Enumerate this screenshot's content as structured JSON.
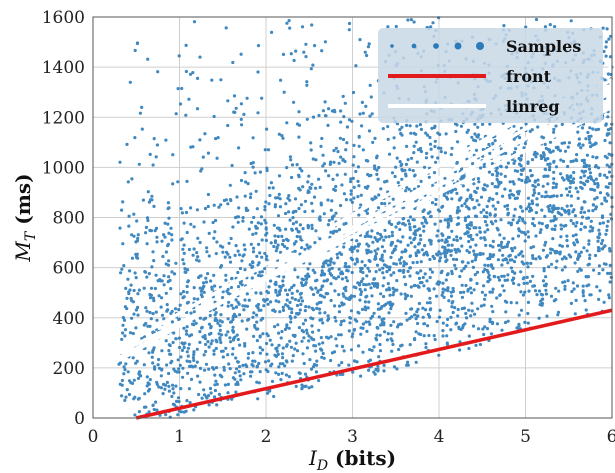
{
  "chart_data": {
    "type": "scatter",
    "xlabel": {
      "main": "I",
      "sub": "D",
      "unit": " (bits)"
    },
    "ylabel": {
      "main": "M",
      "sub": "T",
      "unit": " (ms)"
    },
    "xlim": [
      0,
      6
    ],
    "ylim": [
      0,
      1600
    ],
    "xticks": [
      0,
      1,
      2,
      3,
      4,
      5,
      6
    ],
    "yticks": [
      0,
      200,
      400,
      600,
      800,
      1000,
      1200,
      1400,
      1600
    ],
    "grid": true,
    "legend": {
      "placement": "top-right",
      "entries": [
        {
          "label": "Samples",
          "kind": "points",
          "color": "#2b7bb9"
        },
        {
          "label": "front",
          "kind": "line",
          "color": "#e31a1c"
        },
        {
          "label": "linreg",
          "kind": "line",
          "color": "#ffffff"
        }
      ]
    },
    "series": [
      {
        "name": "Samples",
        "kind": "scatter-cloud",
        "color": "#2b7bb9",
        "envelope": {
          "x": [
            0.3,
            0.5,
            1.0,
            1.5,
            2.0,
            2.5,
            3.0,
            3.5,
            4.0,
            4.5,
            5.0,
            5.5,
            6.0
          ],
          "y_low": [
            30,
            10,
            0,
            60,
            80,
            110,
            150,
            190,
            240,
            290,
            340,
            400,
            430
          ],
          "y_high": [
            1600,
            1600,
            1600,
            1600,
            1600,
            1600,
            1600,
            1600,
            1600,
            1600,
            1600,
            1600,
            1600
          ]
        },
        "density_center": {
          "x": [
            0.3,
            1.0,
            2.0,
            3.0,
            4.0,
            5.0,
            6.0
          ],
          "y": [
            200,
            300,
            430,
            560,
            690,
            830,
            980
          ]
        }
      },
      {
        "name": "front",
        "kind": "line",
        "color": "#e31a1c",
        "x": [
          0.5,
          6.0
        ],
        "y": [
          0,
          430
        ]
      },
      {
        "name": "linreg",
        "kind": "lines",
        "color": "#ffffff",
        "lines": [
          {
            "x": [
              0.3,
              6.0
            ],
            "y": [
              240,
              1300
            ]
          },
          {
            "x": [
              0.3,
              6.0
            ],
            "y": [
              260,
              1240
            ]
          },
          {
            "x": [
              0.3,
              6.0
            ],
            "y": [
              230,
              1350
            ]
          },
          {
            "x": [
              0.3,
              6.0
            ],
            "y": [
              280,
              1400
            ]
          }
        ]
      }
    ]
  }
}
